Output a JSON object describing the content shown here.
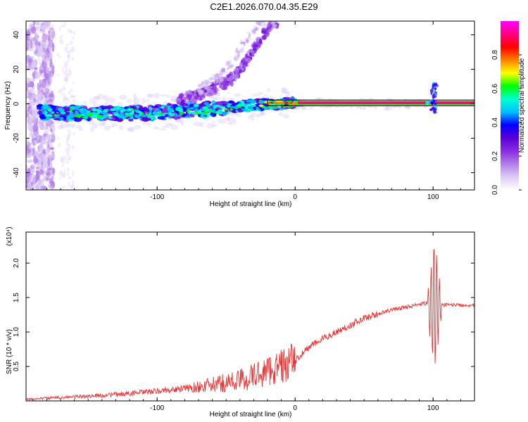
{
  "title": "C2E1.2026.070.04.35.E29",
  "chart_data": [
    {
      "type": "heatmap",
      "name": "spectrogram",
      "title": "",
      "xlabel": "Height of straight line (km)",
      "ylabel": "Frequency (Hz)",
      "xlim": [
        -195,
        130
      ],
      "ylim": [
        -50,
        48
      ],
      "xticks": [
        -100,
        0,
        100
      ],
      "yticks": [
        -40,
        -20,
        0,
        20,
        40
      ],
      "xtick_labels": [
        "-100",
        "0",
        "100"
      ],
      "ytick_labels": [
        "-40",
        "-20",
        "0",
        "20",
        "40"
      ],
      "colorbar": {
        "label": "Normalized spectral amplitude",
        "range": [
          0,
          1
        ],
        "ticks": [
          0.0,
          0.2,
          0.4,
          0.6,
          0.8
        ],
        "tick_labels": [
          "0.0",
          "0.2",
          "0.4",
          "0.6",
          "0.8"
        ],
        "colormap": [
          "#ffffff",
          "#dccbf5",
          "#b07ee8",
          "#8a2be2",
          "#5a00d8",
          "#0000ff",
          "#00bfff",
          "#00ffd0",
          "#00ff00",
          "#ffff00",
          "#ff8000",
          "#ff0000",
          "#ff0080",
          "#ff00ff"
        ]
      },
      "line_color": "#000000",
      "description_series": {
        "main_band_center_hz": [
          [
            -185,
            -5
          ],
          [
            -140,
            -6
          ],
          [
            -100,
            -5
          ],
          [
            -60,
            -3
          ],
          [
            -30,
            -1
          ],
          [
            -10,
            0
          ],
          [
            0,
            0.5
          ],
          [
            50,
            0.5
          ],
          [
            95,
            0.5
          ],
          [
            130,
            0.5
          ]
        ],
        "upper_branch_hz": [
          [
            -80,
            3
          ],
          [
            -60,
            8
          ],
          [
            -45,
            15
          ],
          [
            -35,
            25
          ],
          [
            -25,
            38
          ],
          [
            -15,
            48
          ]
        ],
        "spike_at_km": 100,
        "spike_range_hz": [
          -5,
          12
        ]
      }
    },
    {
      "type": "line",
      "name": "snr",
      "xlabel": "Height of straight line (km)",
      "ylabel": "SNR (10 * v/v)",
      "yscale_label": "(x10⁴)",
      "xlim": [
        -195,
        130
      ],
      "ylim": [
        0.0,
        2.45
      ],
      "xticks": [
        -100,
        0,
        100
      ],
      "yticks": [
        0.5,
        1.0,
        1.5,
        2.0
      ],
      "xtick_labels": [
        "-100",
        "0",
        "100"
      ],
      "ytick_labels": [
        "0.5",
        "1.0",
        "1.5",
        "2.0"
      ],
      "color": "#ee3333",
      "series": [
        {
          "name": "SNR",
          "x": [
            -195,
            -180,
            -160,
            -140,
            -120,
            -100,
            -80,
            -60,
            -40,
            -30,
            -20,
            -10,
            0,
            10,
            20,
            30,
            40,
            50,
            60,
            70,
            80,
            90,
            95,
            98,
            100,
            102,
            104,
            110,
            120,
            130
          ],
          "y": [
            0.02,
            0.04,
            0.06,
            0.08,
            0.11,
            0.14,
            0.18,
            0.23,
            0.3,
            0.36,
            0.44,
            0.5,
            0.58,
            0.78,
            0.9,
            1.0,
            1.1,
            1.2,
            1.26,
            1.32,
            1.36,
            1.4,
            1.42,
            1.35,
            1.4,
            1.4,
            1.38,
            1.4,
            1.39,
            1.39
          ]
        }
      ]
    }
  ]
}
